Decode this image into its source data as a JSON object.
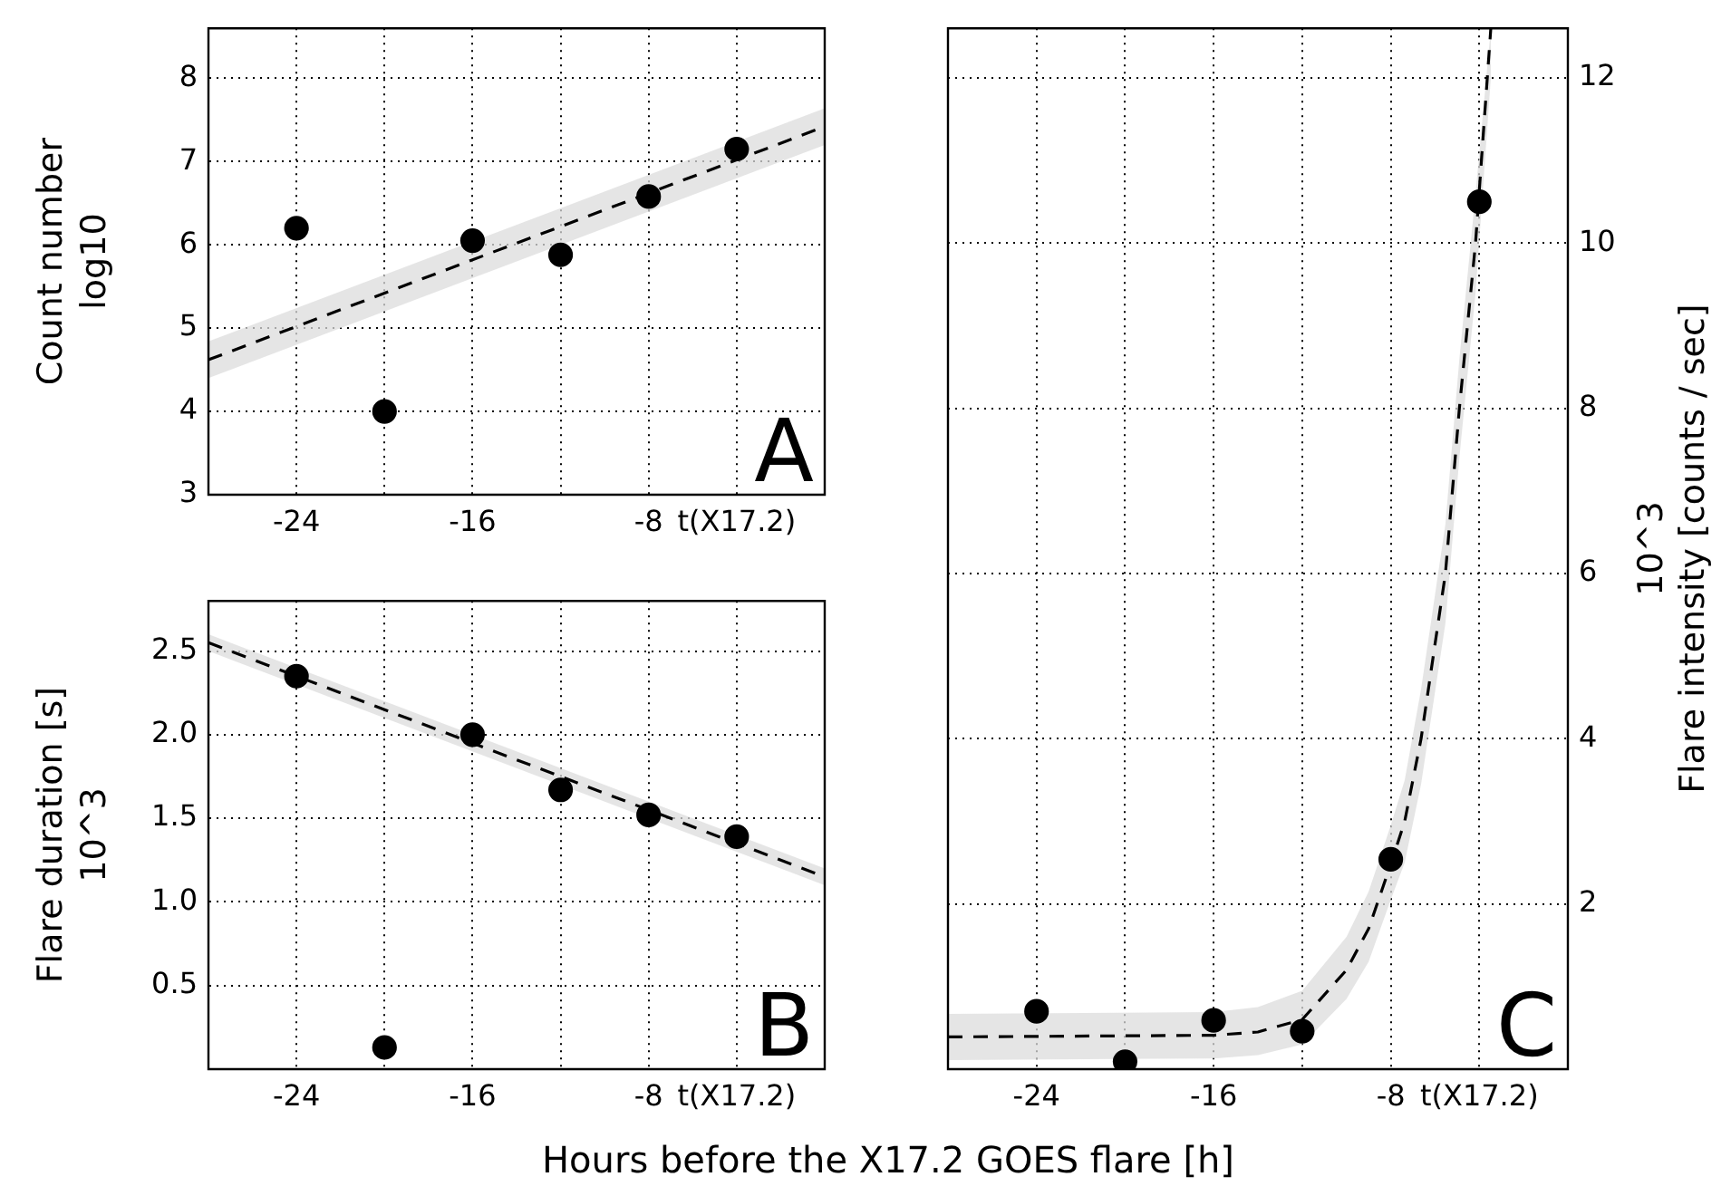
{
  "chart_data": [
    {
      "type": "scatter",
      "ylabel": "Count number\nlog10",
      "xlim": [
        -28,
        0
      ],
      "xticks": [
        -24,
        {
          "value": -20,
          "label": null
        },
        -16,
        {
          "value": -12,
          "label": null
        },
        -8,
        {
          "value": -4,
          "label": "t(X17.2)"
        }
      ],
      "ylim": [
        3,
        8.6
      ],
      "yticks": [
        3,
        4,
        5,
        6,
        7,
        8
      ],
      "grid": true,
      "annotations": [
        "A"
      ],
      "series": [
        {
          "type": "line",
          "x": [
            -28,
            0
          ],
          "values": [
            4.62,
            7.42
          ],
          "lower": [
            4.4,
            7.2
          ],
          "upper": [
            4.84,
            7.64
          ],
          "color": "#000000",
          "line_style": "dashed",
          "marker": "none"
        },
        {
          "type": "scatter",
          "x": [
            -24,
            -20,
            -16,
            -12,
            -8,
            -4
          ],
          "values": [
            6.2,
            4.0,
            6.05,
            5.88,
            6.58,
            7.15
          ],
          "color": "#000000",
          "marker": "circle"
        }
      ]
    },
    {
      "type": "scatter",
      "ylabel": "Flare duration [s]\n10^3",
      "xlim": [
        -28,
        0
      ],
      "xticks": [
        -24,
        {
          "value": -20,
          "label": null
        },
        -16,
        {
          "value": -12,
          "label": null
        },
        -8,
        {
          "value": -4,
          "label": "t(X17.2)"
        }
      ],
      "ylim": [
        0,
        2.8
      ],
      "yticks": [
        0.5,
        {
          "value": 1,
          "label": "1.0"
        },
        1.5,
        {
          "value": 2,
          "label": "2.0"
        },
        2.5
      ],
      "grid": true,
      "annotations": [
        "B"
      ],
      "series": [
        {
          "type": "line",
          "x": [
            -28,
            0
          ],
          "values": [
            2.55,
            1.15
          ],
          "lower": [
            2.5,
            1.1
          ],
          "upper": [
            2.6,
            1.2
          ],
          "color": "#000000",
          "line_style": "dashed",
          "marker": "none"
        },
        {
          "type": "scatter",
          "x": [
            -24,
            -20,
            -16,
            -12,
            -8,
            -4
          ],
          "values": [
            2.35,
            0.13,
            2.0,
            1.67,
            1.52,
            1.39
          ],
          "color": "#000000",
          "marker": "circle"
        }
      ]
    },
    {
      "type": "scatter",
      "xlabel": "Hours before the X17.2 GOES flare [h]",
      "y2label": "10^3\nFlare intensity [counts / sec]",
      "xlim": [
        -28,
        0
      ],
      "xticks": [
        -24,
        {
          "value": -20,
          "label": null
        },
        -16,
        {
          "value": -12,
          "label": null
        },
        -8,
        {
          "value": -4,
          "label": "t(X17.2)"
        }
      ],
      "y2lim": [
        0,
        12.6
      ],
      "y2ticks": [
        2,
        4,
        6,
        8,
        10,
        12
      ],
      "grid": true,
      "annotations": [
        "C"
      ],
      "series": [
        {
          "type": "line",
          "axis": "y2",
          "x": [
            -28,
            -16,
            -14,
            -12,
            -10,
            -9,
            -8,
            -7.37,
            -6.63,
            -5.53,
            -4.9,
            -4.17,
            -3.48
          ],
          "values": [
            0.39,
            0.41,
            0.45,
            0.6,
            1.2,
            1.7,
            2.48,
            3.0,
            4.0,
            6.0,
            8.0,
            10.0,
            12.6
          ],
          "lower": [
            0.11,
            0.13,
            0.17,
            0.3,
            0.85,
            1.3,
            2.05,
            2.5,
            3.45,
            5.4,
            7.4,
            9.4,
            12.0
          ],
          "upper": [
            0.67,
            0.69,
            0.75,
            0.95,
            1.6,
            2.15,
            2.95,
            3.5,
            4.6,
            6.6,
            8.6,
            10.6,
            12.6
          ],
          "color": "#000000",
          "line_style": "dashed",
          "marker": "none"
        },
        {
          "type": "scatter",
          "axis": "y2",
          "x": [
            -24,
            -20,
            -16,
            -12,
            -8,
            -4
          ],
          "values": [
            0.7,
            0.09,
            0.59,
            0.46,
            2.54,
            10.5
          ],
          "color": "#000000",
          "marker": "circle"
        }
      ]
    }
  ]
}
